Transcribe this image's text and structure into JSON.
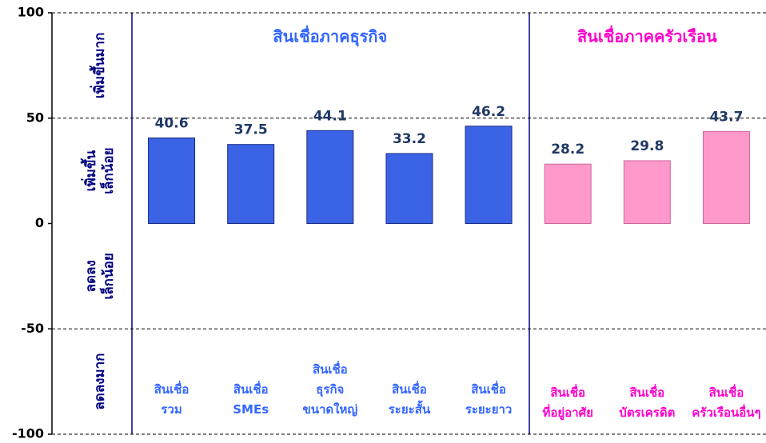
{
  "chart_data": {
    "type": "bar",
    "categories": [
      [
        "สินเชื่อ",
        "รวม"
      ],
      [
        "สินเชื่อ",
        "SMEs"
      ],
      [
        "สินเชื่อ",
        "ธุรกิจ",
        "ขนาดใหญ่"
      ],
      [
        "สินเชื่อ",
        "ระยะสั้น"
      ],
      [
        "สินเชื่อ",
        "ระยะยาว"
      ],
      [
        "สินเชื่อ",
        "ที่อยู่อาศัย"
      ],
      [
        "สินเชื่อ",
        "บัตรเครดิต"
      ],
      [
        "สินเชื่อ",
        "ครัวเรือนอื่นๆ"
      ]
    ],
    "series": [
      {
        "name": "สินเชื่อภาคธุรกิจ",
        "color": "#3a63e6",
        "text_color": "#3366ff",
        "values": [
          40.6,
          37.5,
          44.1,
          33.2,
          46.2,
          null,
          null,
          null
        ]
      },
      {
        "name": "สินเชื่อภาคครัวเรือน",
        "color": "#ff99cc",
        "text_color": "#ff00cc",
        "values": [
          null,
          null,
          null,
          null,
          null,
          28.2,
          29.8,
          43.7
        ]
      }
    ],
    "zone_labels": [
      [
        "เพิ่มขึ้นมาก"
      ],
      [
        "เพิ่มขึ้น",
        "เล็กน้อย"
      ],
      [
        "ลดลง",
        "เล็กน้อย"
      ],
      [
        "ลดลงมาก"
      ]
    ],
    "ylim": [
      -100,
      100
    ],
    "yticks": [
      -100,
      -50,
      0,
      50,
      100
    ],
    "grid": true
  }
}
